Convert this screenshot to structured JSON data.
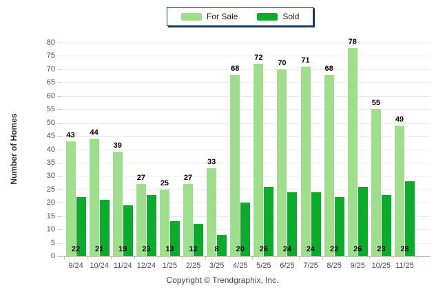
{
  "legend": {
    "items": [
      {
        "label": "For Sale",
        "color": "#9FDE8C"
      },
      {
        "label": "Sold",
        "color": "#0CAB2D"
      }
    ],
    "border_color": "#17375E"
  },
  "y_axis": {
    "title": "Number of Homes",
    "min": 0,
    "max": 80,
    "step": 5
  },
  "footer": {
    "text": "Copyright © Trendgraphix, Inc."
  },
  "chart_data": {
    "type": "bar",
    "title": "",
    "categories": [
      "9/24",
      "10/24",
      "11/24",
      "12/24",
      "1/25",
      "2/25",
      "3/25",
      "4/25",
      "5/25",
      "6/25",
      "7/25",
      "8/25",
      "9/25",
      "10/25",
      "11/25"
    ],
    "series": [
      {
        "name": "For Sale",
        "color": "#9FDE8C",
        "values": [
          43,
          44,
          39,
          27,
          25,
          27,
          33,
          68,
          72,
          70,
          71,
          68,
          78,
          55,
          49
        ]
      },
      {
        "name": "Sold",
        "color": "#0CAB2D",
        "values": [
          22,
          21,
          19,
          23,
          13,
          12,
          8,
          20,
          26,
          24,
          24,
          22,
          26,
          23,
          28
        ]
      }
    ],
    "xlabel": "",
    "ylabel": "Number of Homes",
    "ylim": [
      0,
      80
    ],
    "grid": true,
    "legend_position": "top-center",
    "value_labels": "For Sale above bars, Sold at bar base"
  }
}
